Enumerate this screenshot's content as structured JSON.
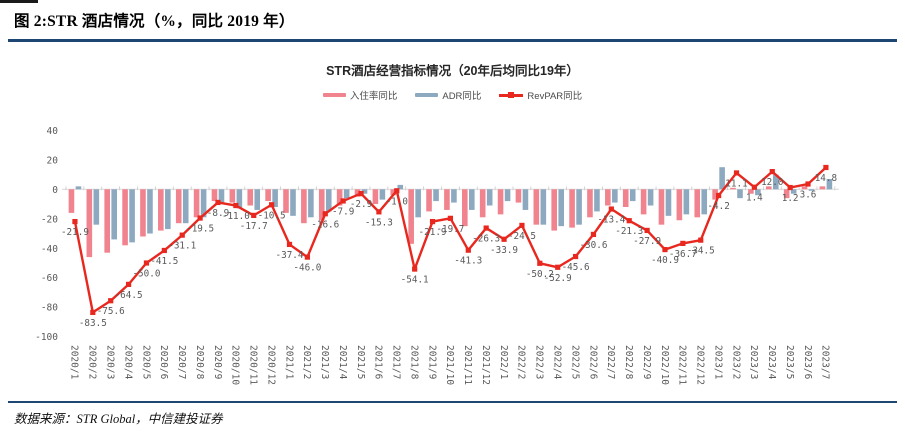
{
  "figure": {
    "label": "图 2:STR 酒店情况（%，同比 2019 年）",
    "source": "数据来源：STR Global，中信建投证券"
  },
  "chart_data": {
    "type": "bar+line combo",
    "title": "STR酒店经营指标情况（20年后均同比19年）",
    "categories": [
      "2020/1",
      "2020/2",
      "2020/3",
      "2020/4",
      "2020/5",
      "2020/6",
      "2020/7",
      "2020/8",
      "2020/9",
      "2020/10",
      "2020/11",
      "2020/12",
      "2021/1",
      "2021/2",
      "2021/3",
      "2021/4",
      "2021/5",
      "2021/6",
      "2021/7",
      "2021/8",
      "2021/9",
      "2021/10",
      "2021/11",
      "2021/12",
      "2022/1",
      "2022/2",
      "2022/3",
      "2022/4",
      "2022/5",
      "2022/6",
      "2022/7",
      "2022/8",
      "2022/9",
      "2022/10",
      "2022/11",
      "2022/12",
      "2023/1",
      "2023/2",
      "2023/3",
      "2023/4",
      "2023/5",
      "2023/6",
      "2023/7"
    ],
    "series": [
      {
        "name": "入住率同比",
        "type": "bar",
        "color": "#f0838d",
        "values": [
          -16,
          -46,
          -43,
          -38,
          -32,
          -28,
          -23,
          -19,
          -8,
          -9,
          -11,
          -8,
          -16,
          -23,
          -21,
          -11,
          -5,
          -10,
          -4,
          -37,
          -15,
          -14,
          -25,
          -19,
          -17,
          -9,
          -24,
          -28,
          -26,
          -19,
          -11,
          -12,
          -17,
          -24,
          -21,
          -19,
          -7,
          1,
          -3,
          2,
          -6,
          2,
          2
        ],
        "values_note": "bars unlabeled in source; values estimated from axis"
      },
      {
        "name": "ADR同比",
        "type": "bar",
        "color": "#8da9c0",
        "values": [
          2,
          -24,
          -34,
          -36,
          -30,
          -27,
          -23,
          -19,
          -10,
          -13,
          -14,
          -12,
          -18,
          -19,
          -15,
          -6,
          -3,
          -7,
          3,
          -19,
          -8,
          -9,
          -14,
          -11,
          -8,
          -14,
          -24,
          -25,
          -24,
          -15,
          -9,
          -8,
          -11,
          -18,
          -17,
          -17,
          15,
          -6,
          -4,
          10,
          -3,
          -1,
          7
        ],
        "values_note": "bars unlabeled in source; values estimated from axis"
      },
      {
        "name": "RevPAR同比",
        "type": "line",
        "color": "#e8281e",
        "values": [
          -21.9,
          -83.5,
          -75.6,
          -64.5,
          -50.0,
          -41.5,
          -31.1,
          -19.5,
          -8.9,
          -11.0,
          -17.7,
          -10.5,
          -37.4,
          -46.0,
          -16.6,
          -7.9,
          -2.9,
          -15.3,
          -1.0,
          -54.1,
          -21.9,
          -19.7,
          -41.3,
          -26.3,
          -33.9,
          -24.5,
          -50.2,
          -52.9,
          -45.6,
          -30.6,
          -13.4,
          -21.3,
          -27.9,
          -40.9,
          -36.7,
          -34.5,
          -4.2,
          11.1,
          1.4,
          12.0,
          1.2,
          3.6,
          14.8
        ],
        "data_labels": true
      }
    ],
    "ylim": [
      -100,
      40
    ],
    "yticks": [
      40,
      20,
      0,
      -20,
      -40,
      -60,
      -80,
      -100
    ],
    "grid": false,
    "legend_position": "top",
    "label_color": "#595959"
  }
}
